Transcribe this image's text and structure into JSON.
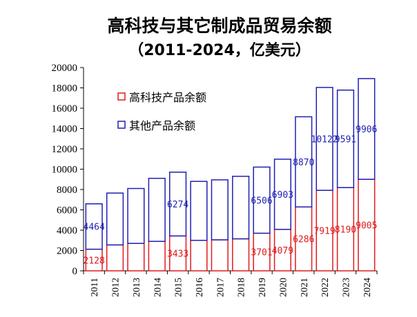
{
  "chart_data": {
    "type": "bar",
    "stacked": true,
    "title_line1": "高科技与其它制成品贸易余额",
    "title_line2": "（2011-2024，亿美元）",
    "xlabel": "",
    "ylabel": "",
    "ylim": [
      0,
      20000
    ],
    "yticks": [
      0,
      2000,
      4000,
      6000,
      8000,
      10000,
      12000,
      14000,
      16000,
      18000,
      20000
    ],
    "grid": false,
    "legend_position": "top-left",
    "categories": [
      "2011",
      "2012",
      "2013",
      "2014",
      "2015",
      "2016",
      "2017",
      "2018",
      "2019",
      "2020",
      "2021",
      "2022",
      "2023",
      "2024"
    ],
    "series": [
      {
        "name": "高科技产品余额",
        "color": "#e0191c",
        "values": [
          2128,
          2550,
          2700,
          2900,
          3433,
          3000,
          3050,
          3150,
          3701,
          4079,
          6286,
          7919,
          8190,
          9005
        ],
        "labels": [
          "2128",
          "",
          "",
          "",
          "3433",
          "",
          "",
          "",
          "3701",
          "4079",
          "6286",
          "7919",
          "8190",
          "9005"
        ]
      },
      {
        "name": "其他产品余额",
        "color": "#1f1fb4",
        "values": [
          4464,
          5100,
          5400,
          6200,
          6274,
          5800,
          5900,
          6150,
          6506,
          6903,
          8870,
          10122,
          9591,
          9906
        ],
        "labels": [
          "4464",
          "",
          "",
          "",
          "6274",
          "",
          "",
          "",
          "6506",
          "6903",
          "8870",
          "10122",
          "9591",
          "9906"
        ]
      }
    ]
  }
}
